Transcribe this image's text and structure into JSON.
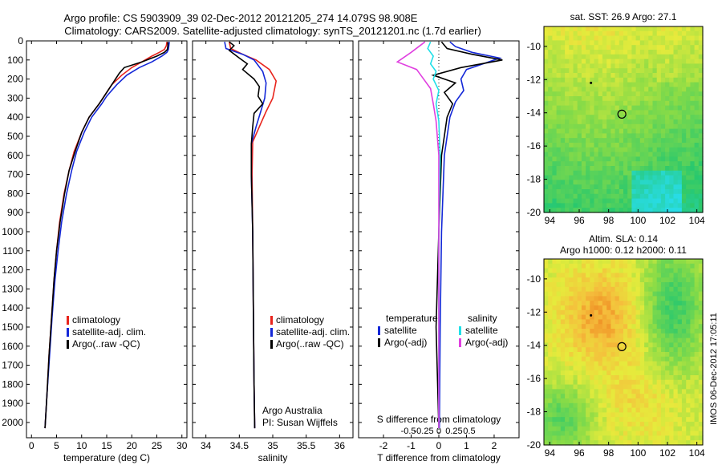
{
  "title": {
    "line1": "Argo profile: CS 5903909_39 02-Dec-2012 20121205_274 14.079S 98.908E",
    "line2": "Climatology: CARS2009. Satellite-adjusted climatology: synTS_20121201.nc (1.7d earlier)"
  },
  "colors": {
    "climatology": "#e8241c",
    "satellite": "#1428d8",
    "argo": "#000000",
    "sat_salinity": "#20e0e8",
    "argo_salinity": "#e040e0"
  },
  "chart_data": [
    {
      "type": "line",
      "id": "temperature",
      "xlabel": "temperature (deg C)",
      "xlim": [
        -1,
        31
      ],
      "ylim": [
        2080,
        0
      ],
      "xticks": [
        0,
        5,
        10,
        15,
        20,
        25,
        30
      ],
      "xtick_labels": [
        "0",
        "5",
        "10",
        "15",
        "20",
        "25",
        "30"
      ],
      "yticks": [
        0,
        100,
        200,
        300,
        400,
        500,
        600,
        700,
        800,
        900,
        1000,
        1100,
        1200,
        1300,
        1400,
        1500,
        1600,
        1700,
        1800,
        1900,
        2000
      ],
      "legend": [
        "climatology",
        "satellite-adj. clim.",
        "Argo(..raw -QC)"
      ],
      "series": [
        {
          "name": "climatology",
          "color": "#e8241c",
          "points": [
            [
              27.0,
              5
            ],
            [
              26.9,
              25
            ],
            [
              26.5,
              45
            ],
            [
              25.5,
              60
            ],
            [
              24,
              80
            ],
            [
              22,
              110
            ],
            [
              20,
              140
            ],
            [
              18,
              180
            ],
            [
              16,
              230
            ],
            [
              14.5,
              290
            ],
            [
              13.5,
              330
            ],
            [
              11.5,
              400
            ],
            [
              10,
              480
            ],
            [
              8.5,
              580
            ],
            [
              7.5,
              680
            ],
            [
              6.5,
              800
            ],
            [
              5.6,
              950
            ],
            [
              5,
              1100
            ],
            [
              4.5,
              1250
            ],
            [
              4,
              1450
            ],
            [
              3.5,
              1650
            ],
            [
              3.1,
              1850
            ],
            [
              2.7,
              2030
            ]
          ]
        },
        {
          "name": "satellite-adj. clim.",
          "color": "#1428d8",
          "points": [
            [
              27.5,
              5
            ],
            [
              27.4,
              25
            ],
            [
              27.3,
              45
            ],
            [
              27,
              60
            ],
            [
              26,
              80
            ],
            [
              24,
              110
            ],
            [
              21.5,
              140
            ],
            [
              19,
              180
            ],
            [
              17,
              230
            ],
            [
              15,
              290
            ],
            [
              14,
              330
            ],
            [
              12,
              400
            ],
            [
              10.5,
              480
            ],
            [
              9,
              580
            ],
            [
              8,
              680
            ],
            [
              7,
              800
            ],
            [
              6,
              950
            ],
            [
              5.3,
              1100
            ],
            [
              4.7,
              1250
            ],
            [
              4.1,
              1450
            ],
            [
              3.6,
              1650
            ],
            [
              3.1,
              1850
            ],
            [
              2.7,
              2030
            ]
          ]
        },
        {
          "name": "Argo(..raw -QC)",
          "color": "#000000",
          "points": [
            [
              27.2,
              5
            ],
            [
              27.2,
              25
            ],
            [
              27.1,
              45
            ],
            [
              26.5,
              60
            ],
            [
              25,
              80
            ],
            [
              22,
              110
            ],
            [
              18.5,
              140
            ],
            [
              17.5,
              170
            ],
            [
              16,
              230
            ],
            [
              14.5,
              290
            ],
            [
              13.5,
              330
            ],
            [
              11.5,
              400
            ],
            [
              10,
              480
            ],
            [
              8.7,
              580
            ],
            [
              7.5,
              680
            ],
            [
              6.6,
              800
            ],
            [
              5.7,
              950
            ],
            [
              5,
              1100
            ],
            [
              4.5,
              1250
            ],
            [
              4,
              1450
            ],
            [
              3.5,
              1650
            ],
            [
              3.1,
              1850
            ],
            [
              2.7,
              2030
            ]
          ]
        }
      ]
    },
    {
      "type": "line",
      "id": "salinity",
      "xlabel": "salinity",
      "xlim": [
        33.8,
        36.2
      ],
      "ylim": [
        2080,
        0
      ],
      "xticks": [
        34,
        34.5,
        35,
        35.5,
        36
      ],
      "xtick_labels": [
        "34",
        "34.5",
        "35",
        "35.5",
        "36"
      ],
      "legend": [
        "climatology",
        "satellite-adj. clim.",
        "Argo(..raw -QC)"
      ],
      "annotations": [
        "Argo Australia",
        "PI: Susan Wijffels"
      ],
      "series": [
        {
          "name": "climatology",
          "color": "#e8241c",
          "points": [
            [
              34.35,
              5
            ],
            [
              34.37,
              40
            ],
            [
              34.55,
              70
            ],
            [
              34.75,
              100
            ],
            [
              34.95,
              150
            ],
            [
              35.05,
              210
            ],
            [
              35.0,
              300
            ],
            [
              34.9,
              370
            ],
            [
              34.8,
              450
            ],
            [
              34.7,
              530
            ],
            [
              34.69,
              700
            ],
            [
              34.7,
              1000
            ],
            [
              34.71,
              1400
            ],
            [
              34.72,
              1800
            ],
            [
              34.73,
              2030
            ]
          ]
        },
        {
          "name": "satellite-adj. clim.",
          "color": "#1428d8",
          "points": [
            [
              34.28,
              5
            ],
            [
              34.3,
              40
            ],
            [
              34.55,
              70
            ],
            [
              34.72,
              100
            ],
            [
              34.85,
              160
            ],
            [
              34.9,
              220
            ],
            [
              34.88,
              300
            ],
            [
              34.82,
              370
            ],
            [
              34.75,
              450
            ],
            [
              34.68,
              540
            ],
            [
              34.68,
              700
            ],
            [
              34.7,
              1000
            ],
            [
              34.71,
              1400
            ],
            [
              34.72,
              1800
            ],
            [
              34.73,
              2030
            ]
          ]
        },
        {
          "name": "Argo(..raw -QC)",
          "color": "#000000",
          "points": [
            [
              34.35,
              5
            ],
            [
              34.42,
              25
            ],
            [
              34.35,
              50
            ],
            [
              34.5,
              90
            ],
            [
              34.62,
              120
            ],
            [
              34.55,
              150
            ],
            [
              34.72,
              200
            ],
            [
              34.8,
              240
            ],
            [
              34.78,
              290
            ],
            [
              34.85,
              330
            ],
            [
              34.72,
              380
            ],
            [
              34.7,
              450
            ],
            [
              34.68,
              540
            ],
            [
              34.68,
              700
            ],
            [
              34.7,
              1000
            ],
            [
              34.71,
              1400
            ],
            [
              34.72,
              1800
            ],
            [
              34.73,
              2030
            ]
          ]
        }
      ]
    },
    {
      "type": "line",
      "id": "difference",
      "xlabel": "T difference from climatology",
      "xlabel_top": "S difference from climatology",
      "xlim": [
        -2.9,
        2.9
      ],
      "ylim": [
        2080,
        0
      ],
      "xticks": [
        -2,
        -1,
        0,
        1,
        2
      ],
      "xtick_labels": [
        "-2",
        "-1",
        "0",
        "1",
        "2"
      ],
      "top_ticks": [
        -0.5,
        -0.25,
        0,
        0.25,
        0.5
      ],
      "top_tick_labels": [
        "-0.5",
        "-0.25",
        "0",
        "0.25",
        "0.5"
      ],
      "legend_left_title": "temperature",
      "legend_right_title": "salinity",
      "legend": [
        "satellite",
        "Argo(-adj)",
        "satellite",
        "Argo(-adj)"
      ],
      "series": [
        {
          "name": "T satellite",
          "color": "#1428d8",
          "points": [
            [
              0.4,
              5
            ],
            [
              0.6,
              30
            ],
            [
              1.2,
              60
            ],
            [
              2.2,
              90
            ],
            [
              1.6,
              120
            ],
            [
              1.0,
              150
            ],
            [
              0.8,
              200
            ],
            [
              0.9,
              260
            ],
            [
              0.6,
              320
            ],
            [
              0.4,
              400
            ],
            [
              0.2,
              600
            ],
            [
              0.1,
              1000
            ],
            [
              0.05,
              1500
            ],
            [
              0.02,
              2030
            ]
          ]
        },
        {
          "name": "T Argo(-adj)",
          "color": "#000000",
          "points": [
            [
              0.1,
              5
            ],
            [
              0.3,
              40
            ],
            [
              1.2,
              70
            ],
            [
              2.3,
              100
            ],
            [
              0.8,
              140
            ],
            [
              -0.2,
              180
            ],
            [
              0.6,
              220
            ],
            [
              0.2,
              270
            ],
            [
              0.5,
              330
            ],
            [
              0.3,
              400
            ],
            [
              0.1,
              600
            ],
            [
              0.0,
              1000
            ],
            [
              -0.1,
              1500
            ],
            [
              0.0,
              2030
            ]
          ]
        },
        {
          "name": "S satellite",
          "color": "#20e0e8",
          "points": [
            [
              -0.3,
              5
            ],
            [
              -0.4,
              40
            ],
            [
              -0.2,
              80
            ],
            [
              -0.3,
              120
            ],
            [
              -0.1,
              160
            ],
            [
              -0.2,
              200
            ],
            [
              0.0,
              260
            ],
            [
              -0.1,
              330
            ],
            [
              0.0,
              420
            ],
            [
              0.05,
              600
            ],
            [
              0.0,
              1000
            ],
            [
              0.0,
              1500
            ],
            [
              0.0,
              2030
            ]
          ]
        },
        {
          "name": "S Argo(-adj)",
          "color": "#e040e0",
          "points": [
            [
              -0.5,
              5
            ],
            [
              -1.0,
              60
            ],
            [
              -1.5,
              110
            ],
            [
              -0.8,
              150
            ],
            [
              -0.6,
              190
            ],
            [
              -0.3,
              250
            ],
            [
              -0.2,
              330
            ],
            [
              -0.1,
              420
            ],
            [
              0.0,
              600
            ],
            [
              0.0,
              1000
            ],
            [
              0.0,
              1500
            ],
            [
              0.0,
              2030
            ]
          ]
        }
      ]
    },
    {
      "type": "heatmap",
      "id": "sst-map",
      "title": "sat. SST: 26.9 Argo: 27.1",
      "xlim": [
        93.6,
        104.4
      ],
      "ylim": [
        -20,
        -8.8
      ],
      "xticks": [
        94,
        96,
        98,
        100,
        102,
        104
      ],
      "xtick_labels": [
        "94",
        "96",
        "98",
        "100",
        "102",
        "104"
      ],
      "yticks": [
        -10,
        -12,
        -14,
        -16,
        -18,
        -20
      ],
      "ytick_labels": [
        "-10",
        "-12",
        "-14",
        "-16",
        "-18",
        "-20"
      ],
      "marker": {
        "lon": 98.9,
        "lat": -14.08
      },
      "dot": {
        "lon": 96.8,
        "lat": -12.2
      }
    },
    {
      "type": "heatmap",
      "id": "sla-map",
      "title": "Altim. SLA: 0.14",
      "subtitle": "Argo h1000: 0.12 h2000: 0.11",
      "xlim": [
        93.6,
        104.4
      ],
      "ylim": [
        -20,
        -8.8
      ],
      "xticks": [
        94,
        96,
        98,
        100,
        102,
        104
      ],
      "xtick_labels": [
        "94",
        "96",
        "98",
        "100",
        "102",
        "104"
      ],
      "yticks": [
        -10,
        -12,
        -14,
        -16,
        -18,
        -20
      ],
      "ytick_labels": [
        "-10",
        "-12",
        "-14",
        "-16",
        "-18",
        "-20"
      ],
      "marker": {
        "lon": 98.9,
        "lat": -14.08
      },
      "dot": {
        "lon": 96.8,
        "lat": -12.2
      }
    }
  ],
  "footer": {
    "credit": "IMOS 06-Dec-2012 17:05:11"
  }
}
